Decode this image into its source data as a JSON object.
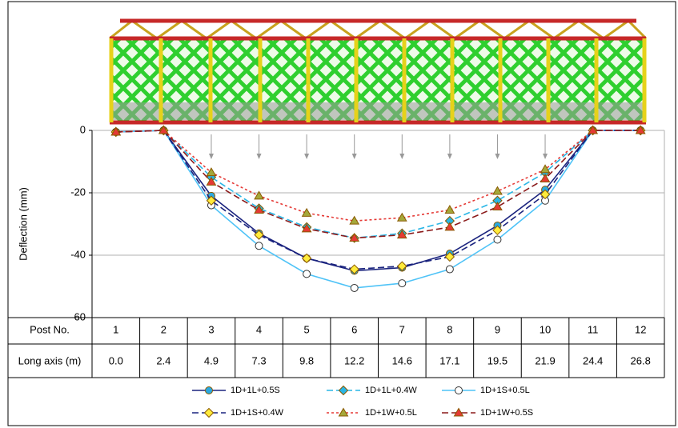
{
  "chart_data": {
    "type": "line",
    "y_label": "Deflection (mm)",
    "x_label": "Post No.",
    "long_axis_label": "Long axis (m)",
    "categories": [
      "1",
      "2",
      "3",
      "4",
      "5",
      "6",
      "7",
      "8",
      "9",
      "10",
      "11",
      "12"
    ],
    "long_axis": [
      "0.0",
      "2.4",
      "4.9",
      "7.3",
      "9.8",
      "12.2",
      "14.6",
      "17.1",
      "19.5",
      "21.9",
      "24.4",
      "26.8"
    ],
    "ylim": [
      -60,
      0
    ],
    "yticks": [
      0,
      -20,
      -40,
      -60
    ],
    "grid": true,
    "series": [
      {
        "name": "1D+1L+0.5S",
        "color": "#1a237e",
        "marker_color": "#29a8e0",
        "marker": "circle",
        "dash": "solid",
        "values": [
          -0.5,
          0,
          -21,
          -33,
          -41,
          -45,
          -44,
          -39.5,
          -30.5,
          -19,
          0,
          0
        ]
      },
      {
        "name": "1D+1L+0.4W",
        "color": "#29b6e6",
        "marker_color": "#29b6e6",
        "marker": "diamond",
        "dash": "dashed",
        "values": [
          -0.5,
          0,
          -15,
          -25,
          -31,
          -34.5,
          -33,
          -29,
          -22.5,
          -13.5,
          0,
          0
        ]
      },
      {
        "name": "1D+1S+0.5L",
        "color": "#4fc3f7",
        "marker_color": "#ffffff",
        "marker": "circle",
        "dash": "solid",
        "values": [
          -0.5,
          0,
          -24,
          -37,
          -46,
          -50.5,
          -49,
          -44.5,
          -35,
          -22.5,
          0,
          0
        ]
      },
      {
        "name": "1D+1S+0.4W",
        "color": "#1a237e",
        "marker_color": "#ffeb3b",
        "marker": "diamond",
        "dash": "dashed",
        "values": [
          -0.5,
          0,
          -22.5,
          -33.5,
          -41,
          -44.5,
          -43.5,
          -40.5,
          -32,
          -20.5,
          0,
          0
        ]
      },
      {
        "name": "1D+1W+0.5L",
        "color": "#e53935",
        "marker_color": "#a5a83a",
        "marker": "triangle",
        "dash": "dotted",
        "values": [
          -0.5,
          0,
          -13.5,
          -21,
          -26.5,
          -29,
          -28,
          -25.5,
          -19.5,
          -12.5,
          0,
          0
        ]
      },
      {
        "name": "1D+1W+0.5S",
        "color": "#8b1a1a",
        "marker_color": "#e53935",
        "marker": "triangle",
        "dash": "dashed",
        "values": [
          -0.5,
          0,
          -16.5,
          -25.5,
          -31.5,
          -34.5,
          -33.5,
          -31,
          -24.5,
          -15.5,
          0,
          0
        ]
      }
    ]
  }
}
